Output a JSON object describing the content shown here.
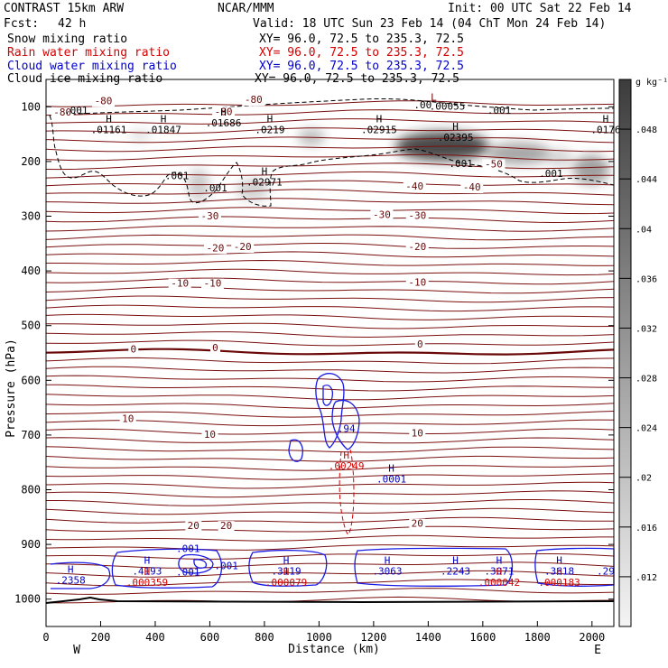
{
  "header": {
    "model": "CONTRAST 15km ARW",
    "center": "NCAR/MMM",
    "init": "Init: 00 UTC Sat 22 Feb 14",
    "fcst_label": "Fcst:",
    "fcst_value": "42 h",
    "valid": "Valid: 18 UTC Sun 23 Feb 14 (04 ChT Mon 24 Feb 14)"
  },
  "fields": [
    {
      "name": "Snow mixing ratio",
      "xy": "XY=  96.0, 72.5 to 235.3, 72.5",
      "color": "#000000"
    },
    {
      "name": "Rain water mixing ratio",
      "xy": "XY=  96.0, 72.5 to 235.3, 72.5",
      "color": "#d40000"
    },
    {
      "name": "Cloud water mixing ratio",
      "xy": "XY=  96.0, 72.5 to 235.3, 72.5",
      "color": "#0000cc"
    },
    {
      "name": "Cloud ice mixing ratio",
      "xy": "XY=  96.0, 72.5 to 235.3, 72.5",
      "color": "#000000"
    }
  ],
  "chart_data": {
    "type": "cross-section",
    "xlabel": "Distance (km)",
    "ylabel": "Pressure (hPa)",
    "xlim": [
      0,
      2080
    ],
    "ylim": [
      1050,
      50
    ],
    "x_ticks": [
      0,
      200,
      400,
      600,
      800,
      1000,
      1200,
      1400,
      1600,
      1800,
      2000
    ],
    "y_ticks": [
      100,
      200,
      300,
      400,
      500,
      600,
      700,
      800,
      900,
      1000
    ],
    "direction_left": "W",
    "direction_right": "E",
    "colorbar": {
      "unit": "g kg⁻¹",
      "levels": [
        ".048",
        ".044",
        ".04",
        ".036",
        ".032",
        ".028",
        ".024",
        ".02",
        ".016",
        ".012"
      ],
      "min": 0.008,
      "max": 0.052
    },
    "temperature_labels": [
      {
        "text": "-80",
        "x": 210,
        "p": 95
      },
      {
        "text": "-80",
        "x": 760,
        "p": 93
      },
      {
        "text": "-80",
        "x": 60,
        "p": 116
      },
      {
        "text": "-80",
        "x": 650,
        "p": 115
      },
      {
        "text": "-50",
        "x": 1640,
        "p": 211
      },
      {
        "text": "-40",
        "x": 1350,
        "p": 251
      },
      {
        "text": "-40",
        "x": 1560,
        "p": 253
      },
      {
        "text": "-30",
        "x": 600,
        "p": 306
      },
      {
        "text": "-30",
        "x": 1230,
        "p": 303
      },
      {
        "text": "-30",
        "x": 1360,
        "p": 305
      },
      {
        "text": "-20",
        "x": 620,
        "p": 364
      },
      {
        "text": "-20",
        "x": 720,
        "p": 362
      },
      {
        "text": "-20",
        "x": 1360,
        "p": 362
      },
      {
        "text": "-10",
        "x": 490,
        "p": 429
      },
      {
        "text": "-10",
        "x": 610,
        "p": 429
      },
      {
        "text": "-10",
        "x": 1360,
        "p": 427
      },
      {
        "text": "0",
        "x": 320,
        "p": 549
      },
      {
        "text": "0",
        "x": 620,
        "p": 547
      },
      {
        "text": "0",
        "x": 1370,
        "p": 540
      },
      {
        "text": "10",
        "x": 300,
        "p": 676
      },
      {
        "text": "10",
        "x": 600,
        "p": 705
      },
      {
        "text": "10",
        "x": 1360,
        "p": 703
      },
      {
        "text": "20",
        "x": 540,
        "p": 872
      },
      {
        "text": "20",
        "x": 660,
        "p": 872
      },
      {
        "text": "20",
        "x": 1360,
        "p": 868
      }
    ],
    "snow_maxima": [
      {
        "text": ".01161",
        "x": 230,
        "p": 148
      },
      {
        "text": ".01847",
        "x": 430,
        "p": 148
      },
      {
        "text": ".01686",
        "x": 650,
        "p": 136
      },
      {
        "text": ".0219",
        "x": 820,
        "p": 148
      },
      {
        "text": ".02915",
        "x": 1220,
        "p": 148
      },
      {
        "text": ".02395",
        "x": 1500,
        "p": 162
      },
      {
        "text": ".0176",
        "x": 2050,
        "p": 148
      },
      {
        "text": ".02971",
        "x": 800,
        "p": 244
      }
    ],
    "ice_labels": [
      {
        "text": ".001",
        "x": 110,
        "p": 113
      },
      {
        "text": ".001",
        "x": 480,
        "p": 232
      },
      {
        "text": ".001",
        "x": 620,
        "p": 255
      },
      {
        "text": ".001",
        "x": 1520,
        "p": 210
      },
      {
        "text": ".001",
        "x": 1850,
        "p": 228
      },
      {
        "text": ".001",
        "x": 1660,
        "p": 113
      },
      {
        "text": ".00",
        "x": 1380,
        "p": 103
      },
      {
        "text": ".00055",
        "x": 1470,
        "p": 105
      }
    ],
    "cloud_water_maxima": [
      {
        "text": ".2358",
        "x": 90,
        "p": 972
      },
      {
        "text": ".4193",
        "x": 370,
        "p": 955
      },
      {
        "text": ".3119",
        "x": 880,
        "p": 955
      },
      {
        "text": ".3063",
        "x": 1250,
        "p": 955
      },
      {
        "text": ".2243",
        "x": 1500,
        "p": 955
      },
      {
        "text": ".3071",
        "x": 1660,
        "p": 955
      },
      {
        "text": ".3618",
        "x": 1880,
        "p": 955
      },
      {
        "text": ".29",
        "x": 2050,
        "p": 955
      },
      {
        "text": ".94",
        "x": 1100,
        "p": 694
      },
      {
        "text": ".0001",
        "x": 1265,
        "p": 787
      },
      {
        "text": ".001",
        "x": 520,
        "p": 957
      },
      {
        "text": ".001",
        "x": 660,
        "p": 945
      },
      {
        "text": ".001",
        "x": 520,
        "p": 914
      }
    ],
    "rain_maxima": [
      {
        "text": ".000359",
        "x": 370,
        "p": 976
      },
      {
        "text": ".000079",
        "x": 880,
        "p": 976
      },
      {
        "text": ".00249",
        "x": 1100,
        "p": 763
      },
      {
        "text": ".000042",
        "x": 1660,
        "p": 976
      },
      {
        "text": ".000183",
        "x": 1880,
        "p": 976
      }
    ],
    "low_labels": [
      {
        "text": "L",
        "x": 1420,
        "p": 89
      }
    ]
  }
}
